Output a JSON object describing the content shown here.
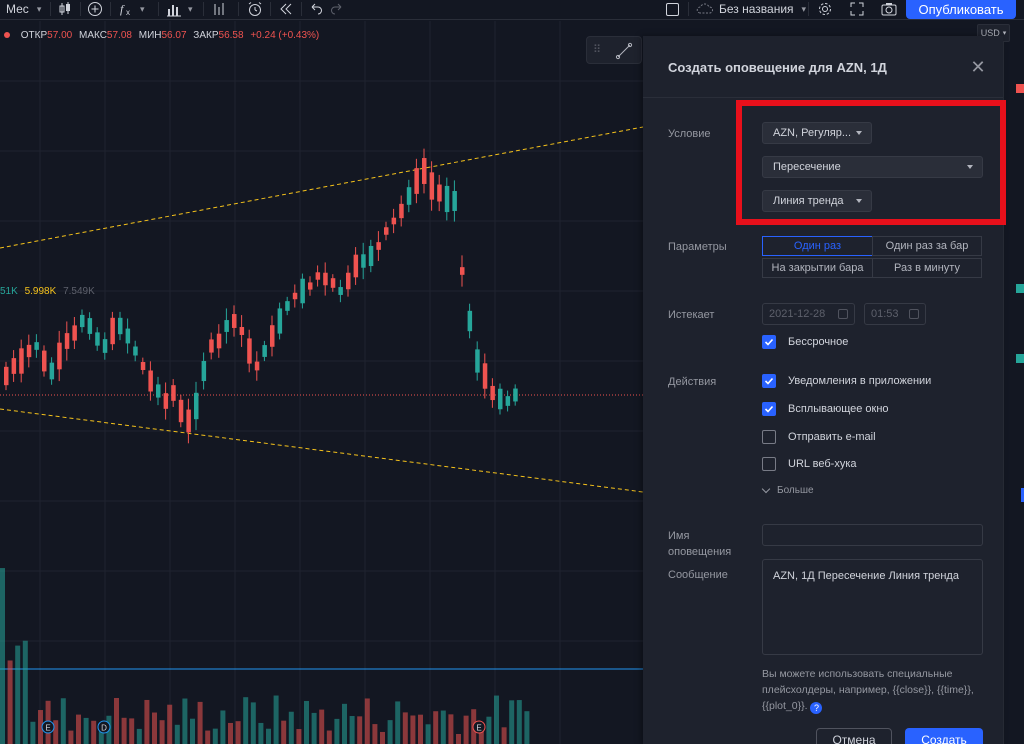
{
  "toolbar": {
    "interval": "Мес",
    "layout_name": "Без названия",
    "publish_label": "Опубликовать"
  },
  "legend": {
    "open_label": "ОТКР",
    "open_value": "57.00",
    "high_label": "МАКС",
    "high_value": "57.08",
    "low_label": "МИН",
    "low_value": "56.07",
    "close_label": "ЗАКР",
    "close_value": "56.58",
    "change": "+0.24 (+0.43%)",
    "vol_1": "51K",
    "vol_2": "5.998K",
    "vol_3": "7.549K"
  },
  "price_scale": {
    "currency": "USD"
  },
  "chart_markers": [
    "E",
    "D",
    "E"
  ],
  "dialog": {
    "title": "Создать оповещение для AZN, 1Д",
    "condition_label": "Условие",
    "condition_source": "AZN, Регуляр...",
    "condition_operator": "Пересечение",
    "condition_target": "Линия тренда",
    "params_label": "Параметры",
    "trigger_options": [
      "Один раз",
      "Один раз за бар",
      "На закрытии бара",
      "Раз в минуту"
    ],
    "trigger_selected": "Один раз",
    "expires_label": "Истекает",
    "expires_date": "2021-12-28",
    "expires_time": "01:53",
    "open_ended_label": "Бессрочное",
    "open_ended_checked": true,
    "actions_label": "Действия",
    "actions": [
      {
        "label": "Уведомления в приложении",
        "checked": true
      },
      {
        "label": "Всплывающее окно",
        "checked": true
      },
      {
        "label": "Отправить e-mail",
        "checked": false
      },
      {
        "label": "URL веб-хука",
        "checked": false
      }
    ],
    "more_label": "Больше",
    "name_label": "Имя оповещения",
    "name_value": "",
    "message_label": "Сообщение",
    "message_value": "AZN, 1Д Пересечение Линия тренда",
    "hint_text": "Вы можете использовать специальные плейсхолдеры, например, {{close}}, {{time}}, {{plot_0}}.",
    "help_icon_text": "?",
    "cancel_label": "Отмена",
    "create_label": "Создать"
  },
  "colors": {
    "up": "#26a69a",
    "down": "#ef5350",
    "accent": "#2962ff",
    "trendline": "#f5c21b",
    "highlight": "#e8101b"
  }
}
